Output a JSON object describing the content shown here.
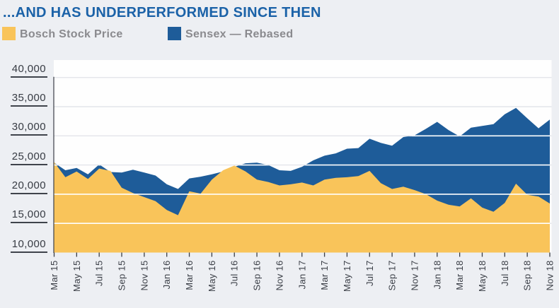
{
  "header": {
    "title": "...AND HAS UNDERPERFORMED SINCE THEN",
    "title_color": "#1B62A8"
  },
  "legend": [
    {
      "label": "Bosch Stock Price",
      "color": "#F9C45A"
    },
    {
      "label": "Sensex — Rebased",
      "color": "#1E5C99"
    }
  ],
  "colors": {
    "page_background": "#EDEFF3",
    "plot_background": "#FEFEFE",
    "grid_line_gray": "#E4E5EA",
    "grid_line_on_area": "#FFFFFF",
    "axis_line": "#3A3E46",
    "axis_text": "#373B43",
    "bosch_area": "#F9C45A",
    "sensex_area": "#1E5C99"
  },
  "chart_data": {
    "type": "area",
    "title": "...AND HAS UNDERPERFORMED SINCE THEN",
    "xlabel": "",
    "ylabel": "",
    "ylim": [
      10000,
      40000
    ],
    "y_ticks": [
      40000,
      35000,
      30000,
      25000,
      20000,
      15000,
      10000
    ],
    "y_tick_labels": [
      "40,000",
      "35,000",
      "30,000",
      "25,000",
      "20,000",
      "15,000",
      "10,000"
    ],
    "grid": true,
    "legend_position": "top-left",
    "baseline_value": 10000,
    "x_tick_every": 2,
    "x": [
      "Mar 15",
      "Apr 15",
      "May 15",
      "Jun 15",
      "Jul 15",
      "Aug 15",
      "Sep 15",
      "Oct 15",
      "Nov 15",
      "Dec 15",
      "Jan 16",
      "Feb 16",
      "Mar 16",
      "Apr 16",
      "May 16",
      "Jun 16",
      "Jul 16",
      "Aug 16",
      "Sep 16",
      "Oct 16",
      "Nov 16",
      "Dec 16",
      "Jan 17",
      "Feb 17",
      "Mar 17",
      "Apr 17",
      "May 17",
      "Jun 17",
      "Jul 17",
      "Aug 17",
      "Sep 17",
      "Oct 17",
      "Nov 17",
      "Dec 17",
      "Jan 18",
      "Feb 18",
      "Mar 18",
      "Apr 18",
      "May 18",
      "Jun 18",
      "Jul 18",
      "Aug 18",
      "Sep 18",
      "Oct 18",
      "Nov 18"
    ],
    "series": [
      {
        "name": "Sensex — Rebased",
        "color": "#1E5C99",
        "values": [
          25400,
          24100,
          24500,
          23400,
          25100,
          23800,
          23700,
          24200,
          23700,
          23200,
          21700,
          20900,
          22700,
          23000,
          23400,
          23900,
          24700,
          25300,
          25400,
          25000,
          24100,
          24000,
          24700,
          25800,
          26600,
          27000,
          27800,
          27900,
          29500,
          28800,
          28300,
          29800,
          30100,
          31200,
          32400,
          31000,
          29900,
          31400,
          31700,
          32000,
          33700,
          34800,
          33000,
          31300,
          32800
        ]
      },
      {
        "name": "Bosch Stock Price",
        "color": "#F9C45A",
        "values": [
          25500,
          22900,
          23900,
          22600,
          24400,
          24000,
          21100,
          20200,
          19500,
          18800,
          17300,
          16400,
          20500,
          20100,
          22500,
          24100,
          24900,
          23900,
          22500,
          22100,
          21500,
          21700,
          22000,
          21500,
          22500,
          22800,
          22900,
          23100,
          24000,
          21900,
          20900,
          21300,
          20700,
          20000,
          18900,
          18200,
          17900,
          19300,
          17700,
          17000,
          18500,
          21800,
          19900,
          19600,
          18400
        ]
      }
    ]
  }
}
